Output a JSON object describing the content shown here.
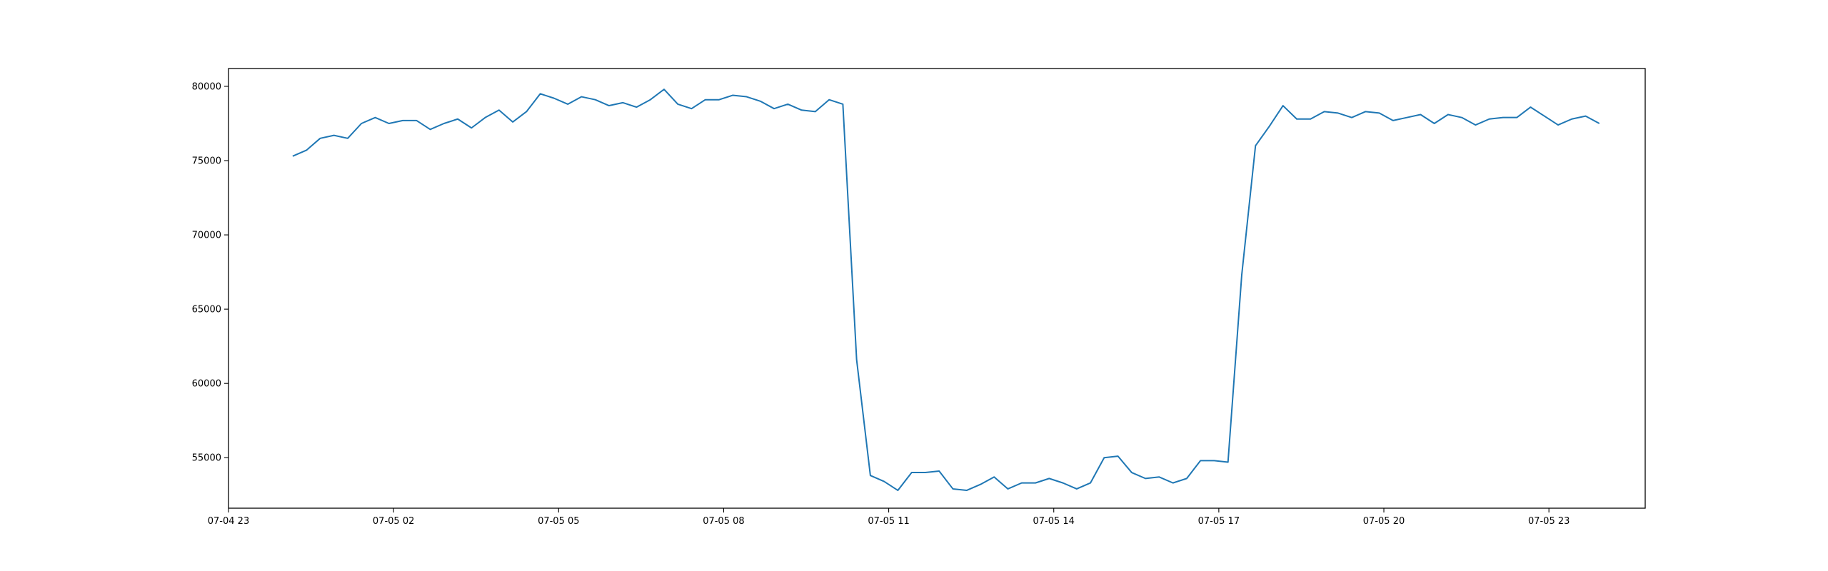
{
  "chart_data": {
    "type": "line",
    "title": "",
    "xlabel": "",
    "ylabel": "",
    "xlim": [
      "2024-07-04 23:00",
      "2024-07-06 00:45"
    ],
    "ylim": [
      51600,
      81200
    ],
    "xticks": [
      {
        "x": "2024-07-04 23:00",
        "label": "07-04 23"
      },
      {
        "x": "2024-07-05 02:00",
        "label": "07-05 02"
      },
      {
        "x": "2024-07-05 05:00",
        "label": "07-05 05"
      },
      {
        "x": "2024-07-05 08:00",
        "label": "07-05 08"
      },
      {
        "x": "2024-07-05 11:00",
        "label": "07-05 11"
      },
      {
        "x": "2024-07-05 14:00",
        "label": "07-05 14"
      },
      {
        "x": "2024-07-05 17:00",
        "label": "07-05 17"
      },
      {
        "x": "2024-07-05 20:00",
        "label": "07-05 20"
      },
      {
        "x": "2024-07-05 23:00",
        "label": "07-05 23"
      }
    ],
    "yticks": [
      {
        "y": 55000,
        "label": "55000"
      },
      {
        "y": 60000,
        "label": "60000"
      },
      {
        "y": 65000,
        "label": "65000"
      },
      {
        "y": 70000,
        "label": "70000"
      },
      {
        "y": 75000,
        "label": "75000"
      },
      {
        "y": 80000,
        "label": "80000"
      }
    ],
    "grid": false,
    "series": [
      {
        "color": "#1f77b4",
        "x": [
          "2024-07-05 00:10",
          "2024-07-05 00:25",
          "2024-07-05 00:40",
          "2024-07-05 00:55",
          "2024-07-05 01:10",
          "2024-07-05 01:25",
          "2024-07-05 01:40",
          "2024-07-05 01:55",
          "2024-07-05 02:10",
          "2024-07-05 02:25",
          "2024-07-05 02:40",
          "2024-07-05 02:55",
          "2024-07-05 03:10",
          "2024-07-05 03:25",
          "2024-07-05 03:40",
          "2024-07-05 03:55",
          "2024-07-05 04:10",
          "2024-07-05 04:25",
          "2024-07-05 04:40",
          "2024-07-05 04:55",
          "2024-07-05 05:10",
          "2024-07-05 05:25",
          "2024-07-05 05:40",
          "2024-07-05 05:55",
          "2024-07-05 06:10",
          "2024-07-05 06:25",
          "2024-07-05 06:40",
          "2024-07-05 06:55",
          "2024-07-05 07:10",
          "2024-07-05 07:25",
          "2024-07-05 07:40",
          "2024-07-05 07:55",
          "2024-07-05 08:10",
          "2024-07-05 08:25",
          "2024-07-05 08:40",
          "2024-07-05 08:55",
          "2024-07-05 09:10",
          "2024-07-05 09:25",
          "2024-07-05 09:40",
          "2024-07-05 09:55",
          "2024-07-05 10:10",
          "2024-07-05 10:25",
          "2024-07-05 10:40",
          "2024-07-05 10:55",
          "2024-07-05 11:10",
          "2024-07-05 11:25",
          "2024-07-05 11:40",
          "2024-07-05 11:55",
          "2024-07-05 12:10",
          "2024-07-05 12:25",
          "2024-07-05 12:40",
          "2024-07-05 12:55",
          "2024-07-05 13:10",
          "2024-07-05 13:25",
          "2024-07-05 13:40",
          "2024-07-05 13:55",
          "2024-07-05 14:10",
          "2024-07-05 14:25",
          "2024-07-05 14:40",
          "2024-07-05 14:55",
          "2024-07-05 15:10",
          "2024-07-05 15:25",
          "2024-07-05 15:40",
          "2024-07-05 15:55",
          "2024-07-05 16:10",
          "2024-07-05 16:25",
          "2024-07-05 16:40",
          "2024-07-05 16:55",
          "2024-07-05 17:10",
          "2024-07-05 17:25",
          "2024-07-05 17:40",
          "2024-07-05 17:55",
          "2024-07-05 18:10",
          "2024-07-05 18:25",
          "2024-07-05 18:40",
          "2024-07-05 18:55",
          "2024-07-05 19:10",
          "2024-07-05 19:25",
          "2024-07-05 19:40",
          "2024-07-05 19:55",
          "2024-07-05 20:10",
          "2024-07-05 20:25",
          "2024-07-05 20:40",
          "2024-07-05 20:55",
          "2024-07-05 21:10",
          "2024-07-05 21:25",
          "2024-07-05 21:40",
          "2024-07-05 21:55",
          "2024-07-05 22:10",
          "2024-07-05 22:25",
          "2024-07-05 22:40",
          "2024-07-05 22:55",
          "2024-07-05 23:10",
          "2024-07-05 23:25",
          "2024-07-05 23:40",
          "2024-07-05 23:55"
        ],
        "y": [
          75300,
          75700,
          76500,
          76700,
          76500,
          77500,
          77900,
          77500,
          77700,
          77700,
          77100,
          77500,
          77800,
          77200,
          77900,
          78400,
          77600,
          78300,
          79500,
          79200,
          78800,
          79300,
          79100,
          78700,
          78900,
          78600,
          79100,
          79800,
          78800,
          78500,
          79100,
          79100,
          79400,
          79300,
          79000,
          78500,
          78800,
          78400,
          78300,
          79100,
          78800,
          61600,
          53800,
          53400,
          52800,
          54000,
          54000,
          54100,
          52900,
          52800,
          53200,
          53700,
          52900,
          53300,
          53300,
          53600,
          53300,
          52900,
          53300,
          55000,
          55100,
          54000,
          53600,
          53700,
          53300,
          53600,
          54800,
          54800,
          54700,
          67300,
          76000,
          77300,
          78700,
          77800,
          77800,
          78300,
          78200,
          77900,
          78300,
          78200,
          77700,
          77900,
          78100,
          77500,
          78100,
          77900,
          77400,
          77800,
          77900,
          77900,
          78600,
          78000,
          77400,
          77800,
          78000,
          77500
        ]
      }
    ]
  }
}
